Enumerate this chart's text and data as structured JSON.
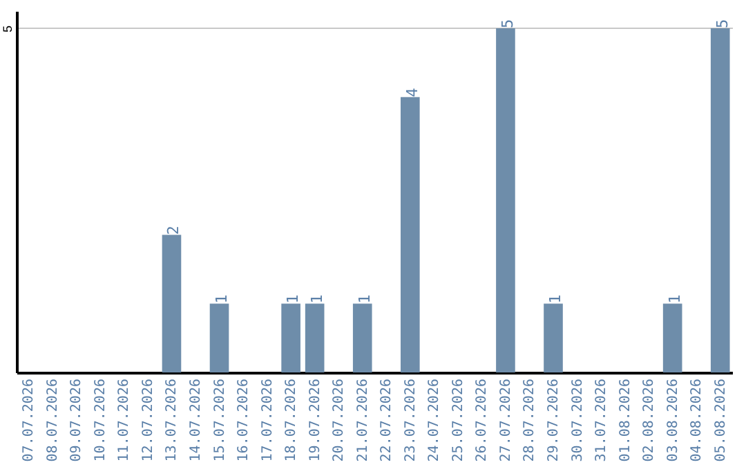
{
  "chart_data": {
    "type": "bar",
    "categories": [
      "07.07.2026",
      "08.07.2026",
      "09.07.2026",
      "10.07.2026",
      "11.07.2026",
      "12.07.2026",
      "13.07.2026",
      "14.07.2026",
      "15.07.2026",
      "16.07.2026",
      "17.07.2026",
      "18.07.2026",
      "19.07.2026",
      "20.07.2026",
      "21.07.2026",
      "22.07.2026",
      "23.07.2026",
      "24.07.2026",
      "25.07.2026",
      "26.07.2026",
      "27.07.2026",
      "28.07.2026",
      "29.07.2026",
      "30.07.2026",
      "31.07.2026",
      "01.08.2026",
      "02.08.2026",
      "03.08.2026",
      "04.08.2026",
      "05.08.2026"
    ],
    "values": [
      null,
      null,
      null,
      null,
      null,
      null,
      2,
      null,
      1,
      null,
      null,
      1,
      1,
      null,
      1,
      null,
      4,
      null,
      null,
      null,
      5,
      null,
      1,
      null,
      null,
      null,
      null,
      1,
      null,
      5
    ],
    "color": "#6e8daa",
    "ylim": [
      0,
      5.25
    ],
    "yticks": [
      5
    ],
    "grid": "y",
    "data_labels": true
  }
}
